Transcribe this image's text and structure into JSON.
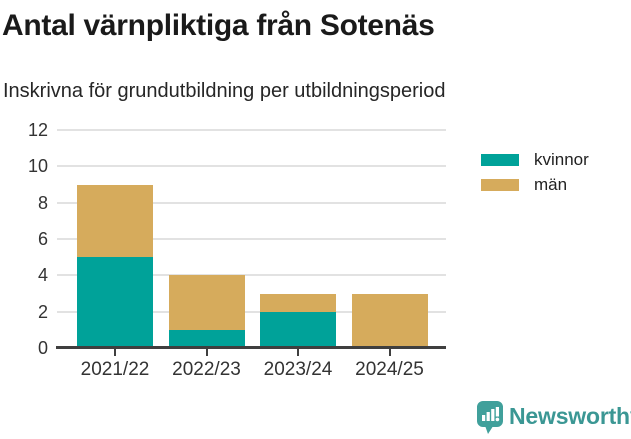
{
  "title": "Antal värnpliktiga från Sotenäs",
  "subtitle": "Inskrivna för grundutbildning per utbildningsperiod",
  "chart_data": {
    "type": "bar",
    "stacked": true,
    "categories": [
      "2021/22",
      "2022/23",
      "2023/24",
      "2024/25"
    ],
    "series": [
      {
        "name": "kvinnor",
        "color": "#00A299",
        "values": [
          5,
          1,
          2,
          0
        ]
      },
      {
        "name": "män",
        "color": "#D6AB5C",
        "values": [
          4,
          3,
          1,
          3
        ]
      }
    ],
    "totals": [
      9,
      4,
      3,
      3
    ],
    "ylim": [
      0,
      12
    ],
    "yticks": [
      0,
      2,
      4,
      6,
      8,
      10,
      12
    ],
    "xlabel": "",
    "ylabel": "",
    "grid": true,
    "legend_position": "right"
  },
  "colors": {
    "gridline": "#e2e2e2",
    "axis": "#3f3f3f",
    "tick_text": "#333333"
  },
  "footer": {
    "brand": "Newsworthy",
    "brand_color": "#3B9794"
  }
}
